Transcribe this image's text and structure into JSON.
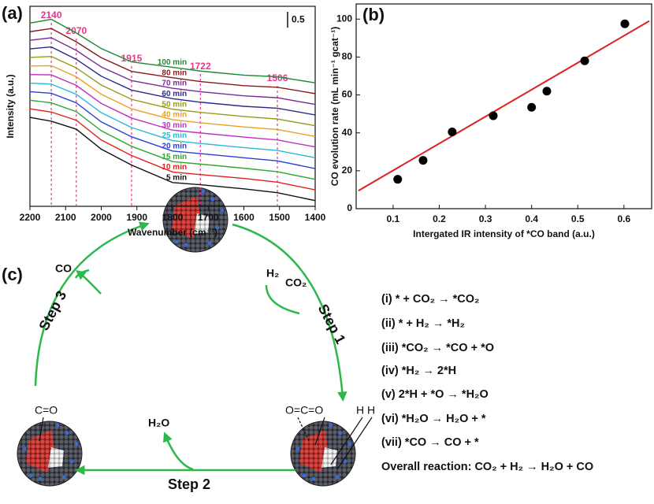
{
  "chart_data": [
    {
      "type": "line",
      "label": "(a)",
      "xlabel": "Wavenumber (cm⁻¹)",
      "ylabel": "Intensity (a.u.)",
      "x": [
        2200,
        2140,
        2070,
        2000,
        1915,
        1800,
        1722,
        1600,
        1506,
        1400
      ],
      "xlim": [
        2200,
        1400
      ],
      "xticks": [
        2200,
        2100,
        2000,
        1900,
        1800,
        1700,
        1600,
        1500,
        1400
      ],
      "ylim": [
        0,
        6.3
      ],
      "scale_bar": 0.5,
      "annotations": [
        2140,
        2070,
        1915,
        1722,
        1506
      ],
      "annotation_color": "#e8368f",
      "series": [
        {
          "name": "5 min",
          "color": "#111111",
          "values": [
            2.8,
            2.68,
            2.43,
            1.8,
            1.3,
            0.75,
            0.68,
            0.55,
            0.43,
            0.18
          ]
        },
        {
          "name": "10 min",
          "color": "#e0201e",
          "values": [
            3.07,
            2.97,
            2.71,
            2.09,
            1.6,
            1.08,
            1.0,
            0.88,
            0.76,
            0.52
          ]
        },
        {
          "name": "15 min",
          "color": "#2fa82f",
          "values": [
            3.34,
            3.26,
            2.98,
            2.38,
            1.89,
            1.41,
            1.33,
            1.2,
            1.09,
            0.85
          ]
        },
        {
          "name": "20 min",
          "color": "#2a3fd6",
          "values": [
            3.61,
            3.56,
            3.26,
            2.66,
            2.19,
            1.74,
            1.66,
            1.53,
            1.43,
            1.19
          ]
        },
        {
          "name": "25 min",
          "color": "#27b8d8",
          "values": [
            3.88,
            3.85,
            3.53,
            2.95,
            2.48,
            2.07,
            1.98,
            1.85,
            1.76,
            1.53
          ]
        },
        {
          "name": "30 min",
          "color": "#c02fc0",
          "values": [
            4.15,
            4.14,
            3.81,
            3.24,
            2.78,
            2.4,
            2.31,
            2.18,
            2.09,
            1.87
          ]
        },
        {
          "name": "40 min",
          "color": "#e8a020",
          "values": [
            4.42,
            4.43,
            4.08,
            3.53,
            3.07,
            2.73,
            2.63,
            2.5,
            2.42,
            2.2
          ]
        },
        {
          "name": "50 min",
          "color": "#9a9a1e",
          "values": [
            4.69,
            4.72,
            4.36,
            3.82,
            3.37,
            3.06,
            2.96,
            2.83,
            2.75,
            2.54
          ]
        },
        {
          "name": "60 min",
          "color": "#2a2a8a",
          "values": [
            4.96,
            5.02,
            4.63,
            4.1,
            3.66,
            3.39,
            3.28,
            3.15,
            3.09,
            2.88
          ]
        },
        {
          "name": "70 min",
          "color": "#7a2a9a",
          "values": [
            5.23,
            5.31,
            4.91,
            4.39,
            3.96,
            3.72,
            3.61,
            3.48,
            3.42,
            3.21
          ]
        },
        {
          "name": "80 min",
          "color": "#8a1a1a",
          "values": [
            5.5,
            5.6,
            5.18,
            4.68,
            4.25,
            4.05,
            3.93,
            3.8,
            3.75,
            3.55
          ]
        },
        {
          "name": "100 min",
          "color": "#1e8a2e",
          "values": [
            5.77,
            5.89,
            5.46,
            4.97,
            4.55,
            4.38,
            4.26,
            4.13,
            4.08,
            3.89
          ]
        }
      ]
    },
    {
      "type": "scatter",
      "label": "(b)",
      "xlabel": "Intergated IR intensity of *CO band (a.u.)",
      "ylabel": "CO evolution rate (mL min⁻¹ gcat⁻¹)",
      "x": [
        0.11,
        0.165,
        0.228,
        0.317,
        0.4,
        0.433,
        0.515,
        0.602
      ],
      "values": [
        15.5,
        25.5,
        40.5,
        49,
        53.5,
        62,
        78,
        97.5
      ],
      "color": "#000000",
      "fit": {
        "x": [
          0.025,
          0.655
        ],
        "values": [
          9.5,
          99
        ],
        "color": "#e02020"
      },
      "xlim": [
        0.02,
        0.66
      ],
      "xticks": [
        0.1,
        0.2,
        0.3,
        0.4,
        0.5,
        0.6
      ],
      "ylim": [
        0,
        108
      ],
      "yticks": [
        0,
        20,
        40,
        60,
        80,
        100
      ]
    }
  ],
  "diagram": {
    "label": "(c)",
    "co": "CO",
    "h2": "H₂",
    "co2": "CO₂",
    "step1": "Step 1",
    "step2": "Step 2",
    "step3": "Step 3",
    "h2o": "H₂O",
    "adsorbed_co": "C=O",
    "adsorbed_co2": "O=C=O",
    "adsorbed_h2": "H H",
    "reactions": [
      "(i)  * + CO₂ → *CO₂",
      "(ii) * + H₂ → *H₂",
      "(iii) *CO₂ → *CO + *O",
      "(iv) *H₂ → 2*H",
      "(v) 2*H + *O → *H₂O",
      "(vi) *H₂O → H₂O + *",
      "(vii) *CO → CO + *",
      "Overall reaction: CO₂ + H₂ → H₂O + CO"
    ]
  }
}
